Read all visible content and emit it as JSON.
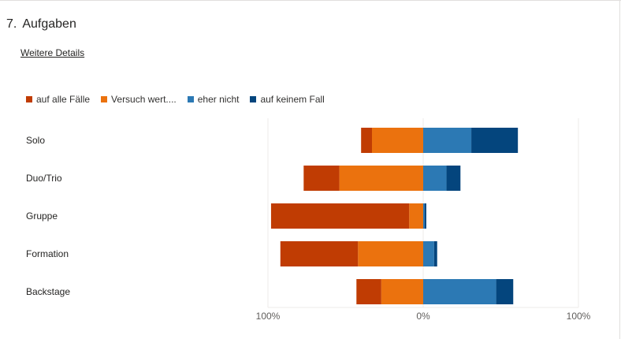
{
  "question": {
    "number": "7.",
    "title": "Aufgaben"
  },
  "details_link": "Weitere Details",
  "chart_data": {
    "type": "bar",
    "orientation": "horizontal-diverging-stacked",
    "categories": [
      "Solo",
      "Duo/Trio",
      "Gruppe",
      "Formation",
      "Backstage"
    ],
    "series": [
      {
        "name": "auf alle Fälle",
        "side": "negative",
        "color": "#c03c03",
        "values": [
          7,
          23,
          89,
          50,
          16
        ]
      },
      {
        "name": "Versuch wert....",
        "side": "negative",
        "color": "#eb720e",
        "values": [
          33,
          54,
          9,
          42,
          27
        ]
      },
      {
        "name": "eher nicht",
        "side": "positive",
        "color": "#2c79b4",
        "values": [
          31,
          15,
          1,
          7,
          47
        ]
      },
      {
        "name": "auf keinem Fall",
        "side": "positive",
        "color": "#04457d",
        "values": [
          30,
          9,
          1,
          2,
          11
        ]
      }
    ],
    "xlim": [
      -100,
      100
    ],
    "tick_labels": [
      "100%",
      "0%",
      "100%"
    ],
    "legend_position": "top-left",
    "grid": true
  }
}
